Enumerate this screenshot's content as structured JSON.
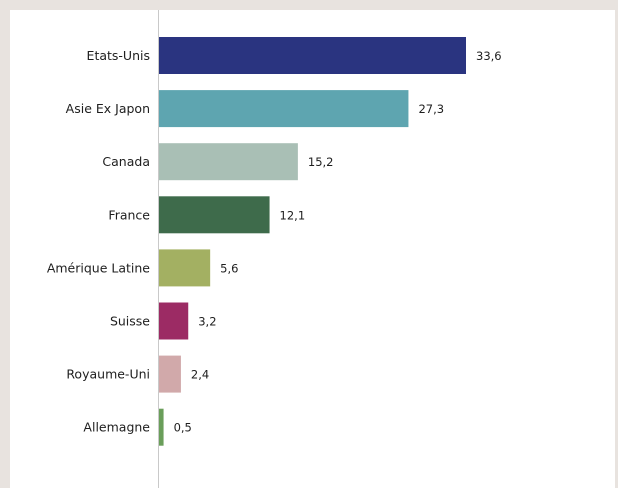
{
  "chart_data": {
    "type": "bar",
    "orientation": "horizontal",
    "categories": [
      "Etats-Unis",
      "Asie Ex Japon",
      "Canada",
      "France",
      "Amérique Latine",
      "Suisse",
      "Royaume-Uni",
      "Allemagne"
    ],
    "values": [
      33.6,
      27.3,
      15.2,
      12.1,
      5.6,
      3.2,
      2.4,
      0.5
    ],
    "value_labels": [
      "33,6",
      "27,3",
      "15,2",
      "12,1",
      "5,6",
      "3,2",
      "2,4",
      "0,5"
    ],
    "colors": [
      "#2a3480",
      "#5ea5b0",
      "#a9bfb5",
      "#3e6b4b",
      "#a3b062",
      "#9c2b64",
      "#d1a9aa",
      "#6a9e5a"
    ],
    "xlim": [
      0,
      33.6
    ],
    "grid": false,
    "legend": "none",
    "title": "",
    "xlabel": "",
    "ylabel": ""
  }
}
